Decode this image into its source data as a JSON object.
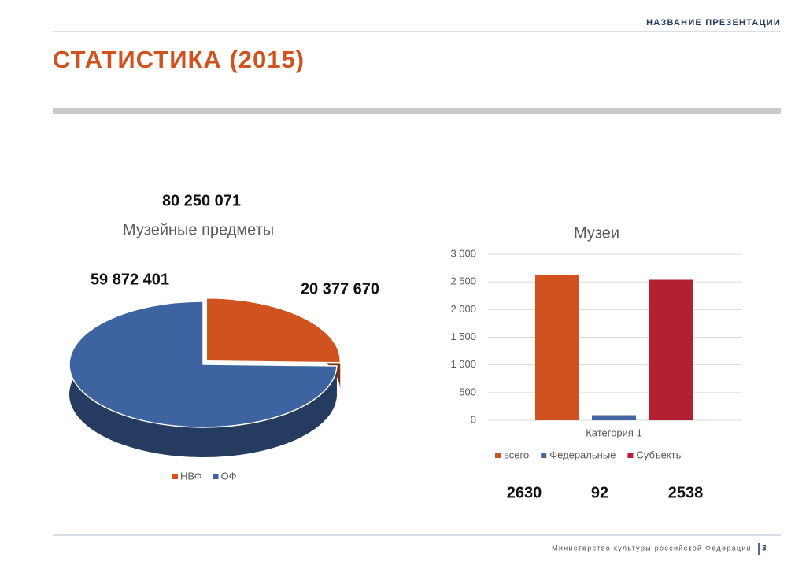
{
  "header": "НАЗВАНИЕ ПРЕЗЕНТАЦИИ",
  "slide_title": "СТАТИСТИКА (2015)",
  "footer": "Министерство культуры российской Федерации",
  "page_number": "3",
  "chart_data": [
    {
      "type": "pie",
      "annotation": "80 250 071",
      "title": "Музейные предметы",
      "categories": [
        "НВФ",
        "ОФ"
      ],
      "values": [
        20377670,
        59872401
      ],
      "value_labels": [
        "20 377 670",
        "59 872 401"
      ],
      "colors": [
        "#d0521f",
        "#3d64a0"
      ]
    },
    {
      "type": "bar",
      "title": "Музеи",
      "categories": [
        "Категория 1"
      ],
      "series": [
        {
          "name": "всего",
          "color": "#d0521f",
          "values": [
            2630
          ]
        },
        {
          "name": "Федеральные",
          "color": "#3f66a0",
          "values": [
            92
          ]
        },
        {
          "name": "Субъекты",
          "color": "#b31f33",
          "values": [
            2538
          ]
        }
      ],
      "ylim": [
        0,
        3000
      ],
      "yticks": [
        0,
        500,
        {
          "value": 1000,
          "label": "1 000"
        },
        {
          "value": 1500,
          "label": "1 500"
        },
        {
          "value": 2000,
          "label": "2 000"
        },
        {
          "value": 2500,
          "label": "2 500"
        },
        {
          "value": 3000,
          "label": "3 000"
        }
      ],
      "grid": true
    }
  ]
}
